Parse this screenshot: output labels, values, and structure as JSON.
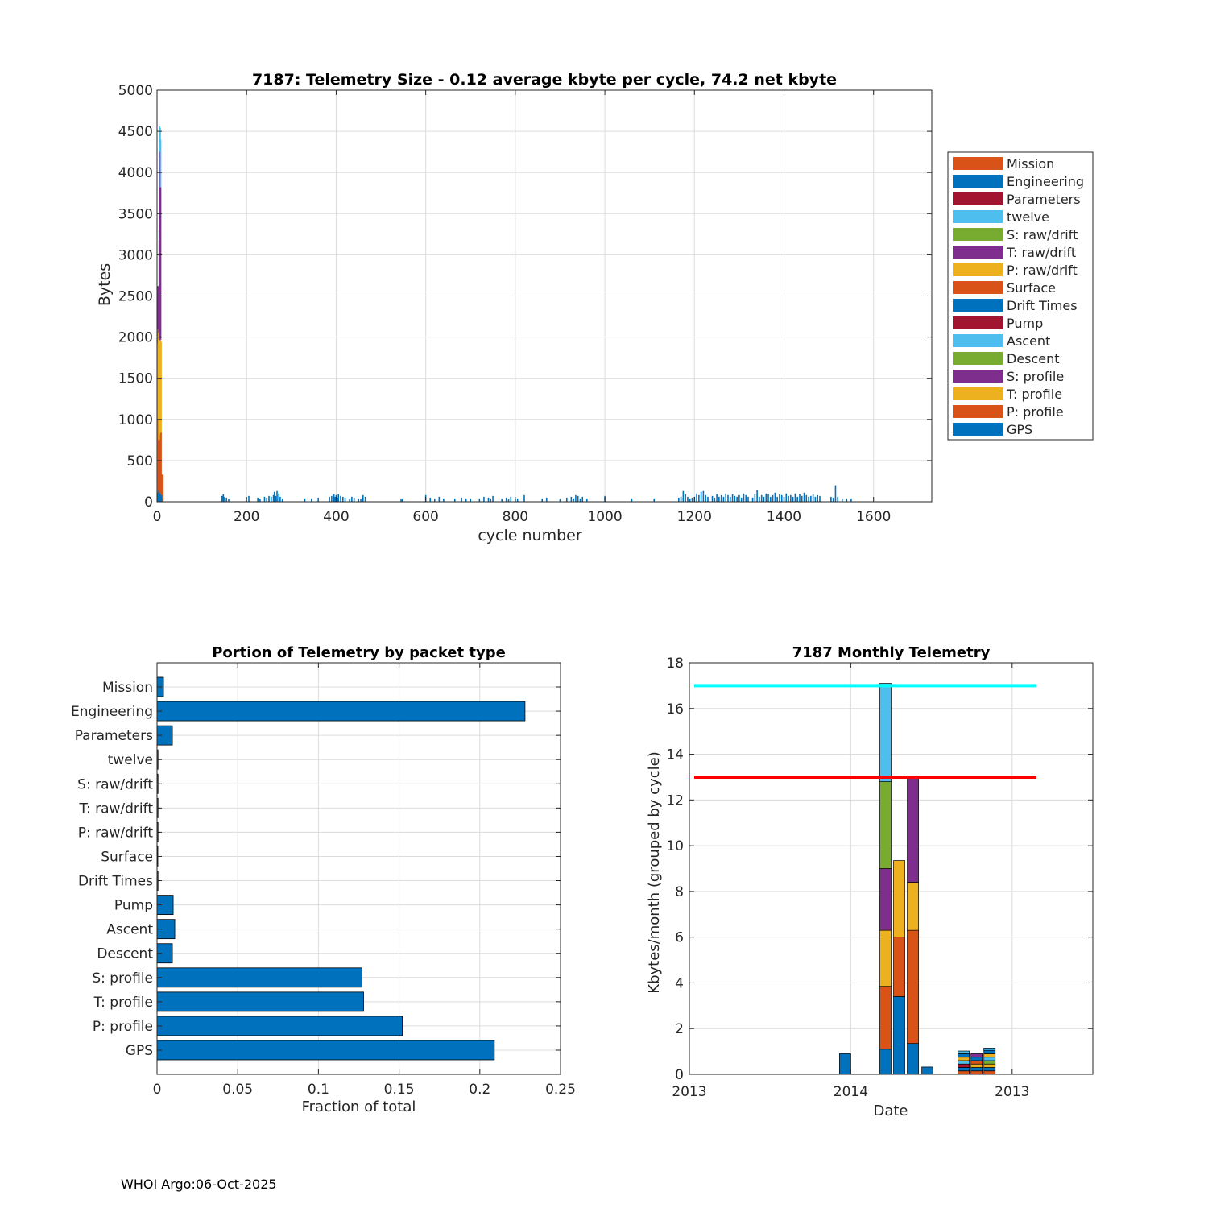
{
  "footer": "WHOI Argo:06-Oct-2025",
  "colors": {
    "orange": "#D95319",
    "blue": "#0072BD",
    "darkred": "#A2142F",
    "lightblue": "#4DBEEE",
    "green": "#77AC30",
    "purple": "#7E2F8E",
    "yellow": "#EDB120",
    "cyan": "#00FFFF",
    "red": "#FF0000"
  },
  "chart_data": [
    {
      "id": "telemetry-size",
      "type": "bar",
      "title": "7187: Telemetry Size - 0.12 average kbyte per cycle,   74.2 net kbyte",
      "xlabel": "cycle number",
      "ylabel": "Bytes",
      "xlim": [
        0,
        1730
      ],
      "ylim": [
        0,
        5000
      ],
      "xticks": [
        0,
        200,
        400,
        600,
        800,
        1000,
        1200,
        1400,
        1600
      ],
      "yticks": [
        0,
        500,
        1000,
        1500,
        2000,
        2500,
        3000,
        3500,
        4000,
        4500,
        5000
      ],
      "grid": true,
      "legend_position": "outside-right",
      "legend": [
        "Mission",
        "Engineering",
        "Parameters",
        "twelve",
        "S: raw/drift",
        "T: raw/drift",
        "P: raw/drift",
        "Surface",
        "Drift Times",
        "Pump",
        "Ascent",
        "Descent",
        "S: profile",
        "T: profile",
        "P: profile",
        "GPS"
      ],
      "legend_colors": [
        "#D95319",
        "#0072BD",
        "#A2142F",
        "#4DBEEE",
        "#77AC30",
        "#7E2F8E",
        "#EDB120",
        "#D95319",
        "#0072BD",
        "#A2142F",
        "#4DBEEE",
        "#77AC30",
        "#7E2F8E",
        "#EDB120",
        "#D95319",
        "#0072BD"
      ],
      "early_stacks": [
        {
          "x": 1,
          "segments": [
            {
              "v": 820,
              "c": "#D95319"
            },
            {
              "v": 60,
              "c": "#0072BD"
            }
          ]
        },
        {
          "x": 2,
          "segments": [
            {
              "v": 120,
              "c": "#0072BD"
            },
            {
              "v": 800,
              "c": "#EDB120"
            },
            {
              "v": 1000,
              "c": "#EDB120"
            },
            {
              "v": 700,
              "c": "#7E2F8E"
            }
          ]
        },
        {
          "x": 3,
          "segments": [
            {
              "v": 100,
              "c": "#0072BD"
            },
            {
              "v": 900,
              "c": "#D95319"
            },
            {
              "v": 1100,
              "c": "#EDB120"
            },
            {
              "v": 200,
              "c": "#7E2F8E"
            }
          ]
        },
        {
          "x": 4,
          "segments": [
            {
              "v": 150,
              "c": "#0072BD"
            },
            {
              "v": 600,
              "c": "#D95319"
            },
            {
              "v": 1300,
              "c": "#EDB120"
            },
            {
              "v": 300,
              "c": "#7E2F8E"
            }
          ]
        },
        {
          "x": 5,
          "segments": [
            {
              "v": 120,
              "c": "#0072BD"
            },
            {
              "v": 650,
              "c": "#D95319"
            },
            {
              "v": 1200,
              "c": "#EDB120"
            },
            {
              "v": 1200,
              "c": "#7E2F8E"
            },
            {
              "v": 130,
              "c": "#4DBEEE"
            }
          ]
        },
        {
          "x": 6,
          "segments": [
            {
              "v": 110,
              "c": "#0072BD"
            },
            {
              "v": 700,
              "c": "#D95319"
            },
            {
              "v": 1250,
              "c": "#EDB120"
            },
            {
              "v": 2100,
              "c": "#7E2F8E"
            },
            {
              "v": 400,
              "c": "#4DBEEE"
            }
          ]
        },
        {
          "x": 7,
          "segments": [
            {
              "v": 100,
              "c": "#0072BD"
            },
            {
              "v": 650,
              "c": "#D95319"
            },
            {
              "v": 1200,
              "c": "#EDB120"
            },
            {
              "v": 2300,
              "c": "#7E2F8E"
            },
            {
              "v": 290,
              "c": "#4DBEEE"
            }
          ]
        },
        {
          "x": 8,
          "segments": [
            {
              "v": 120,
              "c": "#0072BD"
            },
            {
              "v": 700,
              "c": "#D95319"
            },
            {
              "v": 1150,
              "c": "#EDB120"
            },
            {
              "v": 1850,
              "c": "#7E2F8E"
            },
            {
              "v": 580,
              "c": "#4DBEEE"
            }
          ]
        },
        {
          "x": 9,
          "segments": [
            {
              "v": 90,
              "c": "#0072BD"
            },
            {
              "v": 750,
              "c": "#D95319"
            },
            {
              "v": 1100,
              "c": "#EDB120"
            }
          ]
        },
        {
          "x": 10,
          "segments": [
            {
              "v": 80,
              "c": "#0072BD"
            },
            {
              "v": 250,
              "c": "#D95319"
            }
          ]
        },
        {
          "x": 11,
          "segments": [
            {
              "v": 60,
              "c": "#0072BD"
            }
          ]
        },
        {
          "x": 12,
          "segments": [
            {
              "v": 40,
              "c": "#0072BD"
            }
          ]
        },
        {
          "x": 13,
          "segments": [
            {
              "v": 330,
              "c": "#D95319"
            }
          ]
        }
      ],
      "cycles": [
        145,
        148,
        151,
        155,
        160,
        205,
        225,
        230,
        240,
        245,
        250,
        255,
        260,
        262,
        265,
        268,
        272,
        275,
        280,
        330,
        345,
        360,
        385,
        390,
        395,
        398,
        400,
        403,
        405,
        410,
        415,
        420,
        430,
        435,
        440,
        450,
        455,
        460,
        465,
        545,
        548,
        600,
        610,
        620,
        630,
        640,
        665,
        680,
        690,
        700,
        720,
        730,
        740,
        745,
        750,
        770,
        780,
        785,
        790,
        800,
        805,
        820,
        860,
        870,
        900,
        915,
        925,
        930,
        935,
        940,
        945,
        950,
        960,
        1000,
        1060,
        1110,
        1165,
        1170,
        1175,
        1180,
        1185,
        1190,
        1195,
        1200,
        1205,
        1210,
        1215,
        1220,
        1225,
        1230,
        1240,
        1245,
        1250,
        1255,
        1260,
        1265,
        1270,
        1275,
        1280,
        1285,
        1290,
        1295,
        1300,
        1305,
        1310,
        1315,
        1320,
        1330,
        1335,
        1340,
        1345,
        1350,
        1355,
        1360,
        1365,
        1370,
        1375,
        1380,
        1385,
        1390,
        1395,
        1400,
        1405,
        1410,
        1415,
        1420,
        1425,
        1430,
        1435,
        1440,
        1445,
        1450,
        1455,
        1460,
        1465,
        1470,
        1475,
        1480,
        1505,
        1510,
        1515,
        1520,
        1530,
        1540,
        1550
      ],
      "cycle_bytes": [
        70,
        90,
        60,
        50,
        40,
        70,
        50,
        40,
        60,
        50,
        70,
        60,
        80,
        120,
        70,
        130,
        100,
        60,
        40,
        40,
        40,
        50,
        60,
        70,
        90,
        60,
        80,
        50,
        90,
        70,
        60,
        50,
        40,
        60,
        50,
        40,
        40,
        80,
        60,
        40,
        40,
        80,
        50,
        40,
        60,
        40,
        40,
        50,
        40,
        40,
        40,
        60,
        50,
        40,
        70,
        40,
        50,
        40,
        60,
        40,
        40,
        80,
        40,
        50,
        40,
        50,
        60,
        40,
        80,
        70,
        40,
        60,
        40,
        70,
        40,
        40,
        50,
        60,
        130,
        90,
        60,
        40,
        50,
        60,
        100,
        80,
        120,
        130,
        80,
        60,
        70,
        50,
        90,
        60,
        80,
        60,
        100,
        80,
        60,
        90,
        70,
        60,
        80,
        50,
        100,
        80,
        60,
        50,
        90,
        140,
        60,
        80,
        60,
        100,
        90,
        60,
        80,
        110,
        60,
        90,
        80,
        60,
        100,
        70,
        80,
        60,
        100,
        60,
        90,
        70,
        110,
        80,
        60,
        70,
        90,
        60,
        80,
        70,
        60,
        50,
        200,
        60,
        40,
        40,
        40,
        40,
        40
      ]
    },
    {
      "id": "packet-portion",
      "type": "bar",
      "orientation": "horizontal",
      "title": "Portion of Telemetry by packet type",
      "xlabel": "Fraction of total",
      "ylabel": "",
      "xlim": [
        0,
        0.25
      ],
      "xticks": [
        0,
        0.05,
        0.1,
        0.15,
        0.2,
        0.25
      ],
      "xtick_labels": [
        "0",
        "0.05",
        "0.1",
        "0.15",
        "0.2",
        "0.25"
      ],
      "grid": true,
      "bar_color": "#0072BD",
      "categories": [
        "Mission",
        "Engineering",
        "Parameters",
        "twelve",
        "S: raw/drift",
        "T: raw/drift",
        "P: raw/drift",
        "Surface",
        "Drift Times",
        "Pump",
        "Ascent",
        "Descent",
        "S: profile",
        "T: profile",
        "P: profile",
        "GPS"
      ],
      "values": [
        0.004,
        0.228,
        0.0095,
        0.0006,
        0.0006,
        0.0006,
        0.0006,
        0.0004,
        0.0006,
        0.01,
        0.011,
        0.0095,
        0.127,
        0.128,
        0.152,
        0.209
      ]
    },
    {
      "id": "monthly-telemetry",
      "type": "bar",
      "stacked": true,
      "title": "7187 Monthly Telemetry",
      "xlabel": "Date",
      "ylabel": "Kbytes/month (grouped by cycle)",
      "xlim": [
        0,
        25
      ],
      "xticks": [
        0,
        10,
        20
      ],
      "xtick_labels": [
        "2013",
        "2014",
        "2013"
      ],
      "ylim": [
        0,
        18
      ],
      "yticks": [
        0,
        2,
        4,
        6,
        8,
        10,
        12,
        14,
        16,
        18
      ],
      "grid": true,
      "reference_lines": [
        {
          "value": 17,
          "color": "#00FFFF",
          "x": [
            0.3,
            21.5
          ]
        },
        {
          "value": 13,
          "color": "#FF0000",
          "x": [
            0.3,
            21.5
          ]
        }
      ],
      "bars": [
        {
          "x": 9.65,
          "segments": [
            {
              "v": 0.9,
              "c": "#0072BD"
            }
          ]
        },
        {
          "x": 12.15,
          "segments": [
            {
              "v": 1.1,
              "c": "#0072BD"
            },
            {
              "v": 2.75,
              "c": "#D95319"
            },
            {
              "v": 2.45,
              "c": "#EDB120"
            },
            {
              "v": 2.7,
              "c": "#7E2F8E"
            },
            {
              "v": 3.8,
              "c": "#77AC30"
            },
            {
              "v": 4.3,
              "c": "#4DBEEE"
            }
          ]
        },
        {
          "x": 13.0,
          "segments": [
            {
              "v": 3.4,
              "c": "#0072BD"
            },
            {
              "v": 2.6,
              "c": "#D95319"
            },
            {
              "v": 3.35,
              "c": "#EDB120"
            }
          ]
        },
        {
          "x": 13.85,
          "segments": [
            {
              "v": 1.35,
              "c": "#0072BD"
            },
            {
              "v": 4.95,
              "c": "#D95319"
            },
            {
              "v": 2.1,
              "c": "#EDB120"
            },
            {
              "v": 4.65,
              "c": "#7E2F8E"
            }
          ]
        },
        {
          "x": 14.75,
          "segments": [
            {
              "v": 0.32,
              "c": "#0072BD"
            }
          ]
        },
        {
          "x": 17.0,
          "segments": [
            {
              "v": 0.15,
              "c": "#D95319"
            },
            {
              "v": 0.15,
              "c": "#0072BD"
            },
            {
              "v": 0.15,
              "c": "#A2142F"
            },
            {
              "v": 0.15,
              "c": "#4DBEEE"
            },
            {
              "v": 0.15,
              "c": "#EDB120"
            },
            {
              "v": 0.15,
              "c": "#0072BD"
            },
            {
              "v": 0.12,
              "c": "#4DBEEE"
            }
          ]
        },
        {
          "x": 17.8,
          "segments": [
            {
              "v": 0.15,
              "c": "#D95319"
            },
            {
              "v": 0.15,
              "c": "#0072BD"
            },
            {
              "v": 0.15,
              "c": "#EDB120"
            },
            {
              "v": 0.15,
              "c": "#D95319"
            },
            {
              "v": 0.15,
              "c": "#0072BD"
            },
            {
              "v": 0.15,
              "c": "#7E2F8E"
            }
          ]
        },
        {
          "x": 18.6,
          "segments": [
            {
              "v": 0.15,
              "c": "#D95319"
            },
            {
              "v": 0.15,
              "c": "#0072BD"
            },
            {
              "v": 0.15,
              "c": "#EDB120"
            },
            {
              "v": 0.15,
              "c": "#77AC30"
            },
            {
              "v": 0.15,
              "c": "#4DBEEE"
            },
            {
              "v": 0.15,
              "c": "#EDB120"
            },
            {
              "v": 0.15,
              "c": "#0072BD"
            },
            {
              "v": 0.1,
              "c": "#4DBEEE"
            }
          ]
        }
      ]
    }
  ]
}
